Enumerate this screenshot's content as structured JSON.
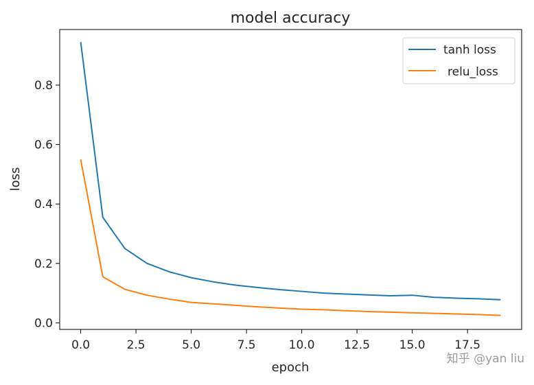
{
  "chart_data": {
    "type": "line",
    "title": "model accuracy",
    "xlabel": "epoch",
    "ylabel": "loss",
    "xlim": [
      -0.95,
      19.95
    ],
    "ylim": [
      -0.022,
      0.987
    ],
    "xticks": [
      0.0,
      2.5,
      5.0,
      7.5,
      10.0,
      12.5,
      15.0,
      17.5
    ],
    "xtick_labels": [
      "0.0",
      "2.5",
      "5.0",
      "7.5",
      "10.0",
      "12.5",
      "15.0",
      "17.5"
    ],
    "yticks": [
      0.0,
      0.2,
      0.4,
      0.6,
      0.8
    ],
    "ytick_labels": [
      "0.0",
      "0.2",
      "0.4",
      "0.6",
      "0.8"
    ],
    "grid": false,
    "legend_position": "top-right",
    "x": [
      0,
      1,
      2,
      3,
      4,
      5,
      6,
      7,
      8,
      9,
      10,
      11,
      12,
      13,
      14,
      15,
      16,
      17,
      18,
      19
    ],
    "series": [
      {
        "name": "tanh loss",
        "color": "#1f77b4",
        "values": [
          0.945,
          0.355,
          0.25,
          0.2,
          0.172,
          0.152,
          0.138,
          0.127,
          0.119,
          0.112,
          0.106,
          0.1,
          0.097,
          0.094,
          0.091,
          0.093,
          0.086,
          0.083,
          0.081,
          0.078
        ]
      },
      {
        "name": "relu_loss",
        "color": "#ff7f0e",
        "values": [
          0.55,
          0.155,
          0.113,
          0.093,
          0.08,
          0.069,
          0.064,
          0.059,
          0.054,
          0.05,
          0.046,
          0.044,
          0.041,
          0.038,
          0.036,
          0.034,
          0.032,
          0.03,
          0.028,
          0.025
        ]
      }
    ]
  },
  "watermark": "知乎 @yan liu"
}
